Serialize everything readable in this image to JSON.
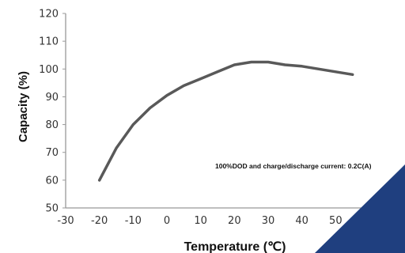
{
  "chart_data": {
    "type": "line",
    "xlabel": "Temperature (℃)",
    "ylabel": "Capacity (%)",
    "xlim": [
      -30,
      60
    ],
    "ylim": [
      50,
      120
    ],
    "xticks": [
      -30,
      -20,
      -10,
      0,
      10,
      20,
      30,
      40,
      50
    ],
    "yticks": [
      50,
      60,
      70,
      80,
      90,
      100,
      110,
      120
    ],
    "grid": false,
    "annotation": "100%DOD and charge/discharge current: 0.2C(A)",
    "series": [
      {
        "x": [
          -20,
          -15,
          -10,
          -5,
          0,
          5,
          10,
          15,
          20,
          25,
          30,
          35,
          40,
          45,
          50,
          55
        ],
        "y": [
          60,
          71.5,
          80,
          86,
          90.5,
          94,
          96.5,
          99,
          101.5,
          102.5,
          102.5,
          101.5,
          101,
          100,
          99,
          98
        ]
      }
    ],
    "colors": {
      "line": "#595959",
      "axis": "#999999",
      "corner_accent": "#1f3f7f"
    }
  }
}
